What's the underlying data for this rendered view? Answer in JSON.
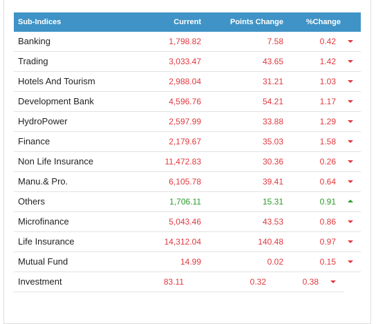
{
  "table": {
    "columns": [
      "Sub-Indices",
      "Current",
      "Points Change",
      "%Change"
    ],
    "rows": [
      [
        "Banking",
        "1,798.82",
        "7.58",
        "0.42"
      ],
      [
        "Trading",
        "3,033.47",
        "43.65",
        "1.42"
      ],
      [
        "Hotels And Tourism",
        "2,988.04",
        "31.21",
        "1.03"
      ],
      [
        "Development Bank",
        "4,596.76",
        "54.21",
        "1.17"
      ],
      [
        "HydroPower",
        "2,597.99",
        "33.88",
        "1.29"
      ],
      [
        "Finance",
        "2,179.67",
        "35.03",
        "1.58"
      ],
      [
        "Non Life Insurance",
        "11,472.83",
        "30.36",
        "0.26"
      ],
      [
        "Manu.& Pro.",
        "6,105.78",
        "39.41",
        "0.64"
      ],
      [
        "Others",
        "1,706.11",
        "15.31",
        "0.91"
      ],
      [
        "Microfinance",
        "5,043.46",
        "43.53",
        "0.86"
      ],
      [
        "Life Insurance",
        "14,312.04",
        "140.48",
        "0.97"
      ],
      [
        "Mutual Fund",
        "14.99",
        "0.02",
        "0.15"
      ],
      [
        "Investment",
        "83.11",
        "0.32",
        "0.38"
      ]
    ]
  }
}
